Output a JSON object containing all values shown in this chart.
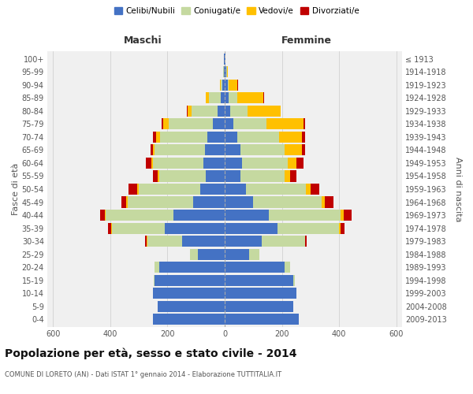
{
  "age_groups": [
    "0-4",
    "5-9",
    "10-14",
    "15-19",
    "20-24",
    "25-29",
    "30-34",
    "35-39",
    "40-44",
    "45-49",
    "50-54",
    "55-59",
    "60-64",
    "65-69",
    "70-74",
    "75-79",
    "80-84",
    "85-89",
    "90-94",
    "95-99",
    "100+"
  ],
  "birth_years": [
    "2009-2013",
    "2004-2008",
    "1999-2003",
    "1994-1998",
    "1989-1993",
    "1984-1988",
    "1979-1983",
    "1974-1978",
    "1969-1973",
    "1964-1968",
    "1959-1963",
    "1954-1958",
    "1949-1953",
    "1944-1948",
    "1939-1943",
    "1934-1938",
    "1929-1933",
    "1924-1928",
    "1919-1923",
    "1914-1918",
    "≤ 1913"
  ],
  "maschi": {
    "celibi": [
      250,
      235,
      250,
      245,
      230,
      95,
      150,
      210,
      180,
      110,
      85,
      65,
      75,
      70,
      60,
      40,
      25,
      15,
      8,
      4,
      2
    ],
    "coniugati": [
      0,
      0,
      0,
      2,
      15,
      25,
      120,
      185,
      235,
      230,
      215,
      165,
      175,
      175,
      165,
      155,
      90,
      40,
      5,
      2,
      0
    ],
    "vedovi": [
      0,
      0,
      0,
      0,
      0,
      0,
      2,
      2,
      5,
      5,
      5,
      5,
      5,
      5,
      15,
      20,
      15,
      10,
      3,
      0,
      0
    ],
    "divorziati": [
      0,
      0,
      0,
      0,
      0,
      0,
      5,
      10,
      15,
      15,
      30,
      15,
      20,
      10,
      10,
      5,
      2,
      2,
      0,
      0,
      0
    ]
  },
  "femmine": {
    "nubili": [
      260,
      240,
      250,
      240,
      210,
      85,
      130,
      185,
      155,
      100,
      75,
      55,
      60,
      55,
      45,
      30,
      20,
      15,
      10,
      5,
      2
    ],
    "coniugate": [
      0,
      0,
      0,
      5,
      20,
      35,
      150,
      215,
      250,
      240,
      210,
      155,
      160,
      155,
      145,
      115,
      60,
      30,
      5,
      2,
      0
    ],
    "vedove": [
      0,
      0,
      0,
      0,
      0,
      0,
      2,
      5,
      10,
      10,
      15,
      20,
      30,
      60,
      80,
      130,
      115,
      90,
      30,
      5,
      0
    ],
    "divorziate": [
      0,
      0,
      0,
      0,
      0,
      0,
      5,
      15,
      30,
      30,
      30,
      20,
      25,
      10,
      10,
      5,
      2,
      2,
      2,
      0,
      0
    ]
  },
  "colors": {
    "celibi": "#4472c4",
    "coniugati": "#c5d9a0",
    "vedovi": "#ffc000",
    "divorziati": "#c00000"
  },
  "title": "Popolazione per età, sesso e stato civile - 2014",
  "subtitle": "COMUNE DI LORETO (AN) - Dati ISTAT 1° gennaio 2014 - Elaborazione TUTTITALIA.IT",
  "xlabel_left": "Maschi",
  "xlabel_right": "Femmine",
  "ylabel_left": "Fasce di età",
  "ylabel_right": "Anni di nascita",
  "xlim": 620,
  "bg_color": "#ffffff",
  "plot_bg": "#f0f0f0",
  "grid_color": "#cccccc",
  "legend_labels": [
    "Celibi/Nubili",
    "Coniugati/e",
    "Vedovi/e",
    "Divorziati/e"
  ]
}
